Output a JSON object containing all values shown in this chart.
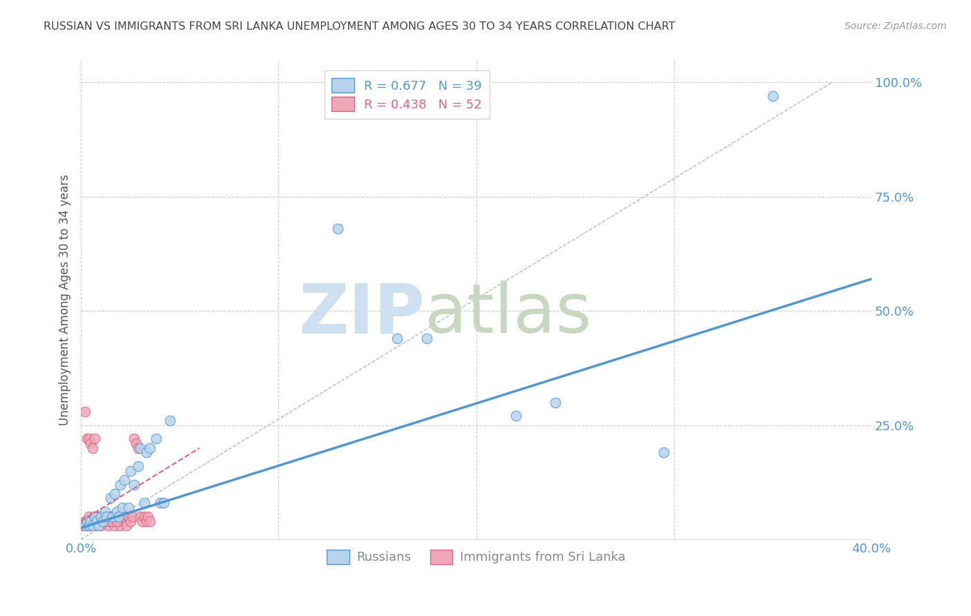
{
  "title": "RUSSIAN VS IMMIGRANTS FROM SRI LANKA UNEMPLOYMENT AMONG AGES 30 TO 34 YEARS CORRELATION CHART",
  "source": "Source: ZipAtlas.com",
  "ylabel": "Unemployment Among Ages 30 to 34 years",
  "xlim": [
    0.0,
    0.4
  ],
  "ylim": [
    0.0,
    1.05
  ],
  "xticks": [
    0.0,
    0.1,
    0.2,
    0.3,
    0.4
  ],
  "xtick_labels": [
    "0.0%",
    "",
    "",
    "",
    "40.0%"
  ],
  "ytick_labels": [
    "",
    "25.0%",
    "50.0%",
    "75.0%",
    "100.0%"
  ],
  "yticks": [
    0.0,
    0.25,
    0.5,
    0.75,
    1.0
  ],
  "blue_scatter_x": [
    0.002,
    0.003,
    0.004,
    0.005,
    0.006,
    0.007,
    0.008,
    0.009,
    0.01,
    0.011,
    0.012,
    0.013,
    0.015,
    0.016,
    0.017,
    0.018,
    0.019,
    0.02,
    0.021,
    0.022,
    0.024,
    0.025,
    0.027,
    0.029,
    0.03,
    0.032,
    0.033,
    0.035,
    0.038,
    0.04,
    0.042,
    0.045,
    0.16,
    0.175,
    0.22,
    0.24,
    0.35,
    0.295,
    0.13
  ],
  "blue_scatter_y": [
    0.03,
    0.04,
    0.03,
    0.04,
    0.03,
    0.05,
    0.04,
    0.03,
    0.05,
    0.04,
    0.06,
    0.05,
    0.09,
    0.05,
    0.1,
    0.06,
    0.05,
    0.12,
    0.07,
    0.13,
    0.07,
    0.15,
    0.12,
    0.16,
    0.2,
    0.08,
    0.19,
    0.2,
    0.22,
    0.08,
    0.08,
    0.26,
    0.44,
    0.44,
    0.27,
    0.3,
    0.97,
    0.19,
    0.68
  ],
  "pink_scatter_x": [
    0.001,
    0.002,
    0.003,
    0.004,
    0.005,
    0.006,
    0.007,
    0.008,
    0.009,
    0.01,
    0.011,
    0.012,
    0.013,
    0.014,
    0.015,
    0.016,
    0.017,
    0.018,
    0.019,
    0.02,
    0.021,
    0.022,
    0.023,
    0.024,
    0.025,
    0.026,
    0.027,
    0.028,
    0.029,
    0.03,
    0.031,
    0.032,
    0.033,
    0.034,
    0.035,
    0.002,
    0.003,
    0.004,
    0.005,
    0.006,
    0.007,
    0.008,
    0.009,
    0.01,
    0.011,
    0.012,
    0.013,
    0.014,
    0.015,
    0.016,
    0.017,
    0.018
  ],
  "pink_scatter_y": [
    0.03,
    0.04,
    0.03,
    0.05,
    0.03,
    0.04,
    0.05,
    0.03,
    0.04,
    0.03,
    0.04,
    0.05,
    0.04,
    0.03,
    0.05,
    0.04,
    0.03,
    0.05,
    0.04,
    0.03,
    0.05,
    0.04,
    0.03,
    0.05,
    0.04,
    0.05,
    0.22,
    0.21,
    0.2,
    0.05,
    0.04,
    0.05,
    0.04,
    0.05,
    0.04,
    0.28,
    0.22,
    0.22,
    0.21,
    0.2,
    0.22,
    0.04,
    0.05,
    0.04,
    0.05,
    0.04,
    0.05,
    0.04,
    0.05,
    0.04,
    0.05,
    0.04
  ],
  "blue_line_x": [
    0.0,
    0.4
  ],
  "blue_line_y": [
    0.025,
    0.57
  ],
  "pink_line_x": [
    0.0,
    0.06
  ],
  "pink_line_y": [
    0.04,
    0.2
  ],
  "diag_line_x": [
    0.0,
    0.38
  ],
  "diag_line_y": [
    0.0,
    1.0
  ],
  "blue_color": "#4f96d3",
  "blue_scatter_color": "#b8d4ed",
  "pink_color": "#e06080",
  "pink_scatter_color": "#f0a8b8",
  "diag_line_color": "#b8b8b8",
  "background_color": "#ffffff",
  "grid_color": "#cccccc",
  "watermark_zip_color": "#cde0f0",
  "watermark_atlas_color": "#c8d8c0"
}
